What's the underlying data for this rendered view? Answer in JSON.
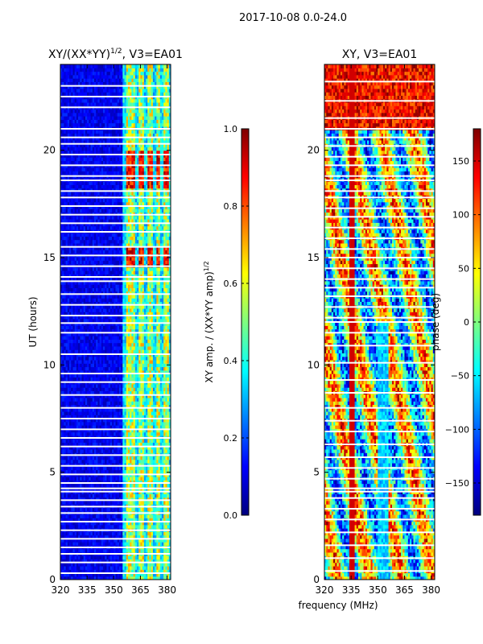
{
  "suptitle": "2017-10-08 0.0-24.0",
  "xlabel_common": "frequency (MHz)",
  "colors": {
    "jet": [
      "#00007f",
      "#0000ff",
      "#007fff",
      "#00ffff",
      "#7fff7f",
      "#ffff00",
      "#ff7f00",
      "#ff0000",
      "#7f0000"
    ]
  },
  "chart_data": [
    {
      "type": "heatmap",
      "title": "XY/(XX*YY)",
      "title_sup": "1/2",
      "title_suffix": ", V3=EA01",
      "xlabel": "",
      "ylabel": "UT (hours)",
      "xlim": [
        320,
        382
      ],
      "ylim": [
        0,
        24
      ],
      "xticks": [
        320,
        335,
        350,
        365,
        380
      ],
      "yticks": [
        0,
        5,
        10,
        15,
        20
      ],
      "colorbar": {
        "label": "XY amp. / (XX*YY amp)",
        "label_sup": "1/2",
        "range": [
          0.0,
          1.0
        ],
        "ticks": [
          0.0,
          0.2,
          0.4,
          0.6,
          0.8,
          1.0
        ],
        "tick_labels": [
          "0.0",
          "0.2",
          "0.4",
          "0.6",
          "0.8",
          "1.0"
        ]
      },
      "gaps_hours": [
        0.3,
        0.8,
        1.2,
        1.5,
        1.9,
        2.3,
        2.7,
        3.1,
        3.4,
        3.7,
        4.1,
        4.25,
        4.5,
        4.9,
        5.3,
        5.8,
        6.2,
        6.6,
        7.0,
        7.5,
        8.0,
        8.6,
        9.2,
        9.6,
        10.5,
        11.5,
        11.95,
        12.3,
        12.8,
        13.3,
        13.9,
        14.1,
        14.6,
        15.1,
        15.5,
        16.2,
        16.6,
        17.0,
        17.4,
        17.8,
        18.1,
        18.6,
        18.8,
        19.3,
        19.8,
        20.3,
        20.6,
        21.0,
        22.0,
        22.5,
        23.0
      ],
      "bright_bands_mhz": [
        [
          357,
          362
        ],
        [
          364,
          367
        ],
        [
          369,
          372
        ],
        [
          374,
          376
        ],
        [
          378,
          381
        ]
      ],
      "mean_amplitude_background": 0.05,
      "mean_amplitude_bands": 0.55,
      "high_amplitude_hours": [
        [
          14.5,
          15.6
        ],
        [
          18.3,
          20.0
        ]
      ]
    },
    {
      "type": "heatmap",
      "title": "XY, V3=EA01",
      "xlabel": "frequency (MHz)",
      "ylabel": "",
      "xlim": [
        320,
        382
      ],
      "ylim": [
        0,
        24
      ],
      "xticks": [
        320,
        335,
        350,
        365,
        380
      ],
      "yticks": [
        0,
        5,
        10,
        15,
        20
      ],
      "colorbar": {
        "label": "phase (deg)",
        "range": [
          -180,
          180
        ],
        "ticks": [
          -150,
          -100,
          -50,
          0,
          50,
          100,
          150
        ],
        "tick_labels": [
          "−150",
          "−100",
          "−50",
          "0",
          "50",
          "100",
          "150"
        ]
      },
      "gaps_hours": [
        0.4,
        1.0,
        1.6,
        2.2,
        2.8,
        3.3,
        3.8,
        4.1,
        4.25,
        4.7,
        5.2,
        5.7,
        6.3,
        6.9,
        7.4,
        8.0,
        8.7,
        9.3,
        10.1,
        10.9,
        11.5,
        12.0,
        12.2,
        12.7,
        13.2,
        13.6,
        14.0,
        14.5,
        15.0,
        15.4,
        15.9,
        16.4,
        16.9,
        17.3,
        17.8,
        18.1,
        18.6,
        18.8,
        19.3,
        19.7,
        20.2,
        20.6,
        21.0,
        21.5,
        22.3,
        23.2
      ]
    }
  ]
}
